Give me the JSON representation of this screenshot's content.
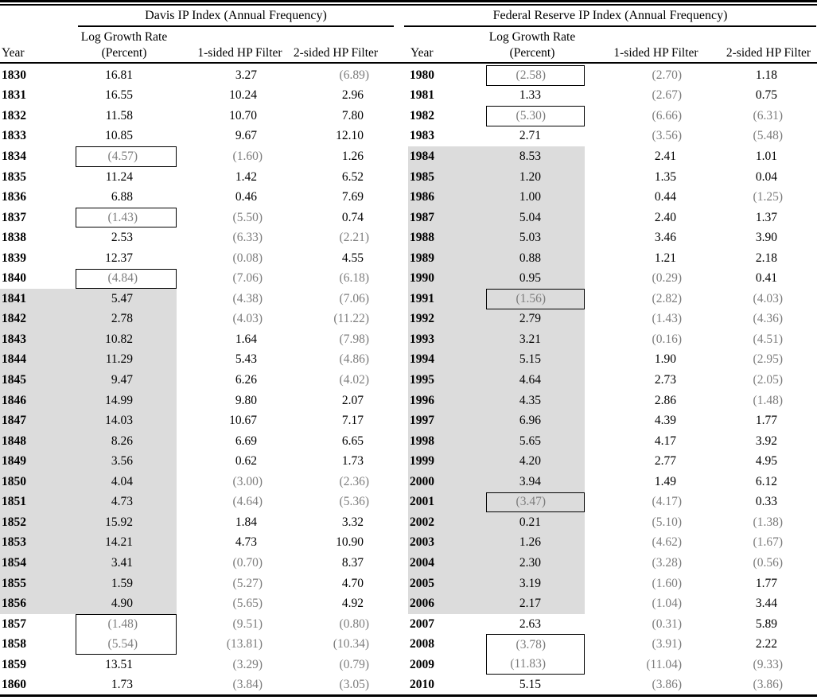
{
  "tables": [
    {
      "name": "davis",
      "spanner": "Davis IP Index (Annual Frequency)",
      "headers": {
        "year": "Year",
        "growth_l1": "Log Growth Rate",
        "growth_l2": "(Percent)",
        "hp1": "1-sided HP Filter",
        "hp2": "2-sided HP Filter"
      },
      "shaded_years": {
        "from": "1841",
        "to": "1856"
      },
      "boxed": [
        [
          "1834"
        ],
        [
          "1837"
        ],
        [
          "1840"
        ],
        [
          "1857",
          "1858"
        ]
      ],
      "rows": [
        [
          "1830",
          "16.81",
          "3.27",
          "(6.89)"
        ],
        [
          "1831",
          "16.55",
          "10.24",
          "2.96"
        ],
        [
          "1832",
          "11.58",
          "10.70",
          "7.80"
        ],
        [
          "1833",
          "10.85",
          "9.67",
          "12.10"
        ],
        [
          "1834",
          "(4.57)",
          "(1.60)",
          "1.26"
        ],
        [
          "1835",
          "11.24",
          "1.42",
          "6.52"
        ],
        [
          "1836",
          "6.88",
          "0.46",
          "7.69"
        ],
        [
          "1837",
          "(1.43)",
          "(5.50)",
          "0.74"
        ],
        [
          "1838",
          "2.53",
          "(6.33)",
          "(2.21)"
        ],
        [
          "1839",
          "12.37",
          "(0.08)",
          "4.55"
        ],
        [
          "1840",
          "(4.84)",
          "(7.06)",
          "(6.18)"
        ],
        [
          "1841",
          "5.47",
          "(4.38)",
          "(7.06)"
        ],
        [
          "1842",
          "2.78",
          "(4.03)",
          "(11.22)"
        ],
        [
          "1843",
          "10.82",
          "1.64",
          "(7.98)"
        ],
        [
          "1844",
          "11.29",
          "5.43",
          "(4.86)"
        ],
        [
          "1845",
          "9.47",
          "6.26",
          "(4.02)"
        ],
        [
          "1846",
          "14.99",
          "9.80",
          "2.07"
        ],
        [
          "1847",
          "14.03",
          "10.67",
          "7.17"
        ],
        [
          "1848",
          "8.26",
          "6.69",
          "6.65"
        ],
        [
          "1849",
          "3.56",
          "0.62",
          "1.73"
        ],
        [
          "1850",
          "4.04",
          "(3.00)",
          "(2.36)"
        ],
        [
          "1851",
          "4.73",
          "(4.64)",
          "(5.36)"
        ],
        [
          "1852",
          "15.92",
          "1.84",
          "3.32"
        ],
        [
          "1853",
          "14.21",
          "4.73",
          "10.90"
        ],
        [
          "1854",
          "3.41",
          "(0.70)",
          "8.37"
        ],
        [
          "1855",
          "1.59",
          "(5.27)",
          "4.70"
        ],
        [
          "1856",
          "4.90",
          "(5.65)",
          "4.92"
        ],
        [
          "1857",
          "(1.48)",
          "(9.51)",
          "(0.80)"
        ],
        [
          "1858",
          "(5.54)",
          "(13.81)",
          "(10.34)"
        ],
        [
          "1859",
          "13.51",
          "(3.29)",
          "(0.79)"
        ],
        [
          "1860",
          "1.73",
          "(3.84)",
          "(3.05)"
        ]
      ]
    },
    {
      "name": "federal-reserve",
      "spanner": "Federal Reserve IP Index (Annual Frequency)",
      "headers": {
        "year": "Year",
        "growth_l1": "Log Growth Rate",
        "growth_l2": "(Percent)",
        "hp1": "1-sided HP Filter",
        "hp2": "2-sided HP Filter"
      },
      "shaded_years": {
        "from": "1984",
        "to": "2006"
      },
      "boxed": [
        [
          "1980"
        ],
        [
          "1982"
        ],
        [
          "1991"
        ],
        [
          "2001"
        ],
        [
          "2008",
          "2009"
        ]
      ],
      "rows": [
        [
          "1980",
          "(2.58)",
          "(2.70)",
          "1.18"
        ],
        [
          "1981",
          "1.33",
          "(2.67)",
          "0.75"
        ],
        [
          "1982",
          "(5.30)",
          "(6.66)",
          "(6.31)"
        ],
        [
          "1983",
          "2.71",
          "(3.56)",
          "(5.48)"
        ],
        [
          "1984",
          "8.53",
          "2.41",
          "1.01"
        ],
        [
          "1985",
          "1.20",
          "1.35",
          "0.04"
        ],
        [
          "1986",
          "1.00",
          "0.44",
          "(1.25)"
        ],
        [
          "1987",
          "5.04",
          "2.40",
          "1.37"
        ],
        [
          "1988",
          "5.03",
          "3.46",
          "3.90"
        ],
        [
          "1989",
          "0.88",
          "1.21",
          "2.18"
        ],
        [
          "1990",
          "0.95",
          "(0.29)",
          "0.41"
        ],
        [
          "1991",
          "(1.56)",
          "(2.82)",
          "(4.03)"
        ],
        [
          "1992",
          "2.79",
          "(1.43)",
          "(4.36)"
        ],
        [
          "1993",
          "3.21",
          "(0.16)",
          "(4.51)"
        ],
        [
          "1994",
          "5.15",
          "1.90",
          "(2.95)"
        ],
        [
          "1995",
          "4.64",
          "2.73",
          "(2.05)"
        ],
        [
          "1996",
          "4.35",
          "2.86",
          "(1.48)"
        ],
        [
          "1997",
          "6.96",
          "4.39",
          "1.77"
        ],
        [
          "1998",
          "5.65",
          "4.17",
          "3.92"
        ],
        [
          "1999",
          "4.20",
          "2.77",
          "4.95"
        ],
        [
          "2000",
          "3.94",
          "1.49",
          "6.12"
        ],
        [
          "2001",
          "(3.47)",
          "(4.17)",
          "0.33"
        ],
        [
          "2002",
          "0.21",
          "(5.10)",
          "(1.38)"
        ],
        [
          "2003",
          "1.26",
          "(4.62)",
          "(1.67)"
        ],
        [
          "2004",
          "2.30",
          "(3.28)",
          "(0.56)"
        ],
        [
          "2005",
          "3.19",
          "(1.60)",
          "1.77"
        ],
        [
          "2006",
          "2.17",
          "(1.04)",
          "3.44"
        ],
        [
          "2007",
          "2.63",
          "(0.31)",
          "5.89"
        ],
        [
          "2008",
          "(3.78)",
          "(3.91)",
          "2.22"
        ],
        [
          "2009",
          "(11.83)",
          "(11.04)",
          "(9.33)"
        ],
        [
          "2010",
          "5.15",
          "(3.86)",
          "(3.86)"
        ]
      ]
    }
  ],
  "colors": {
    "negative_text": "#7d7d7d",
    "shading": "#dcdcdc",
    "rule": "#000000"
  }
}
